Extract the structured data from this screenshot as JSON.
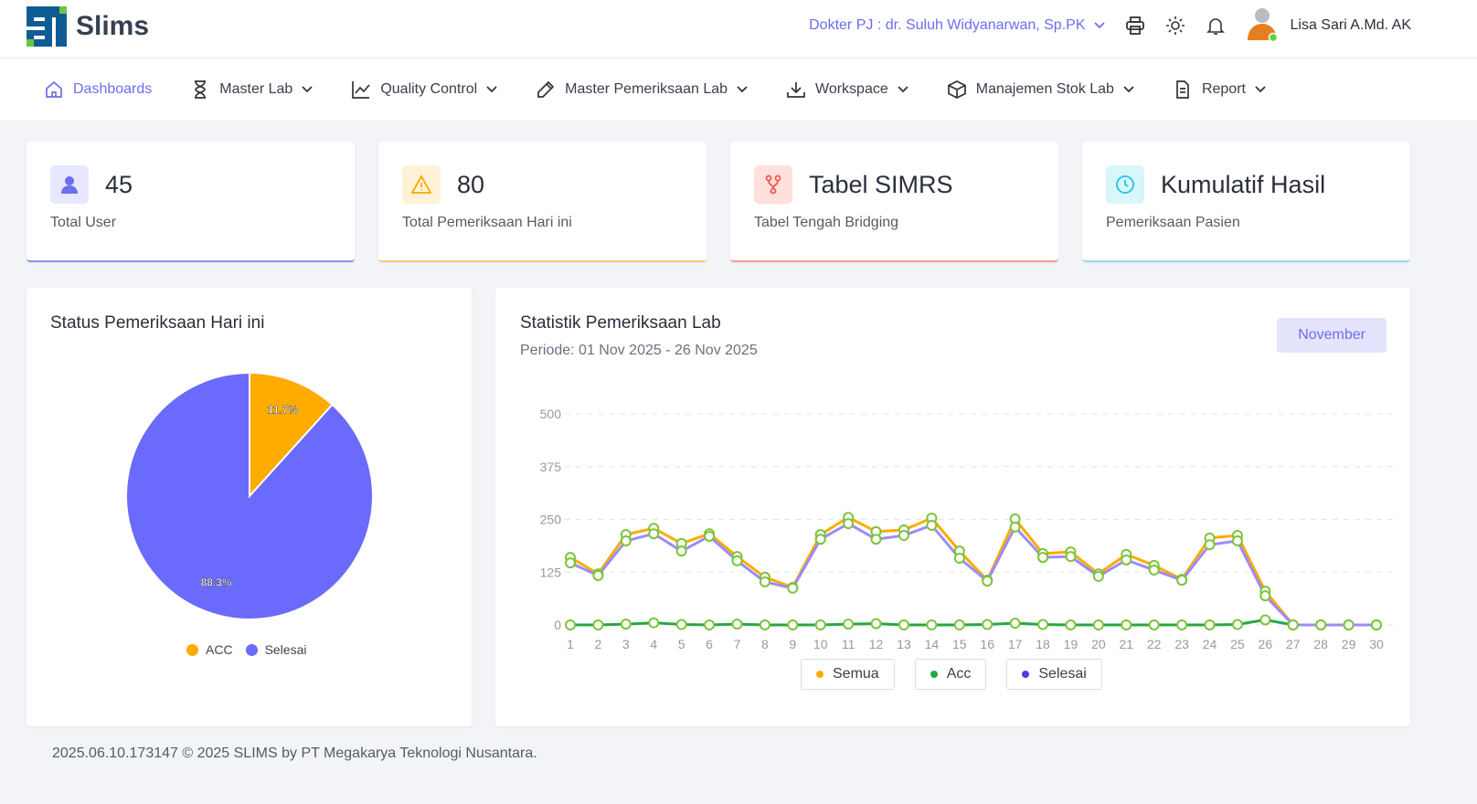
{
  "header": {
    "logo_text": "Slims",
    "doctor": "Dokter PJ : dr. Suluh Widyanarwan, Sp.PK",
    "user_name": "Lisa Sari A.Md. AK"
  },
  "nav": [
    {
      "label": "Dashboards",
      "icon": "home-icon"
    },
    {
      "label": "Master Lab",
      "icon": "hourglass-icon"
    },
    {
      "label": "Quality Control",
      "icon": "chart-line-icon"
    },
    {
      "label": "Master Pemeriksaan Lab",
      "icon": "pipette-icon"
    },
    {
      "label": "Workspace",
      "icon": "download-icon"
    },
    {
      "label": "Manajemen Stok Lab",
      "icon": "box-icon"
    },
    {
      "label": "Report",
      "icon": "file-icon"
    }
  ],
  "stats": [
    {
      "value": "45",
      "label": "Total User",
      "color": "#6d6df0"
    },
    {
      "value": "80",
      "label": "Total Pemeriksaan Hari ini",
      "color": "#f5a700"
    },
    {
      "value": "Tabel SIMRS",
      "label": "Tabel Tengah Bridging",
      "color": "#f0564a"
    },
    {
      "value": "Kumulatif Hasil",
      "label": "Pemeriksaan Pasien",
      "color": "#21c3e6"
    }
  ],
  "pie": {
    "title": "Status Pemeriksaan Hari ini"
  },
  "line": {
    "title": "Statistik Pemeriksaan Lab",
    "period": "Periode: 01 Nov 2025 - 26 Nov 2025",
    "month_button": "November"
  },
  "footer": "2025.06.10.173147 © 2025 SLIMS by PT Megakarya Teknologi Nusantara.",
  "chart_data": [
    {
      "type": "pie",
      "title": "Status Pemeriksaan Hari ini",
      "slices": [
        {
          "name": "ACC",
          "value": 11.7,
          "label": "11.7%",
          "color": "#ffab00"
        },
        {
          "name": "Selesai",
          "value": 88.3,
          "label": "88.3%",
          "color": "#6a6afc"
        }
      ],
      "legend": "bottom"
    },
    {
      "type": "line",
      "title": "Statistik Pemeriksaan Lab",
      "x": [
        1,
        2,
        3,
        4,
        5,
        6,
        7,
        8,
        9,
        10,
        11,
        12,
        13,
        14,
        15,
        16,
        17,
        18,
        19,
        20,
        21,
        22,
        23,
        24,
        25,
        26,
        27,
        28,
        29,
        30
      ],
      "ylim": [
        0,
        500
      ],
      "yticks": [
        0,
        125,
        250,
        375,
        500
      ],
      "grid": true,
      "legend": "bottom",
      "series": [
        {
          "name": "Semua",
          "color": "#ffab00",
          "values": [
            160,
            121,
            214,
            229,
            193,
            216,
            162,
            113,
            89,
            214,
            255,
            221,
            225,
            253,
            175,
            106,
            251,
            169,
            173,
            121,
            167,
            141,
            108,
            206,
            212,
            80,
            0,
            0,
            0,
            0
          ]
        },
        {
          "name": "Acc",
          "color": "#28a745",
          "values": [
            0,
            0,
            2,
            5,
            1,
            0,
            2,
            0,
            0,
            0,
            2,
            3,
            0,
            0,
            0,
            1,
            4,
            1,
            0,
            0,
            0,
            0,
            0,
            0,
            1,
            12,
            0,
            0,
            0,
            0
          ]
        },
        {
          "name": "Selesai",
          "color": "#6a4cf5",
          "values": [
            147,
            117,
            199,
            216,
            175,
            210,
            152,
            102,
            87,
            203,
            240,
            203,
            212,
            236,
            158,
            104,
            232,
            160,
            162,
            115,
            154,
            130,
            106,
            190,
            199,
            69,
            0,
            0,
            0,
            0
          ]
        }
      ]
    }
  ]
}
